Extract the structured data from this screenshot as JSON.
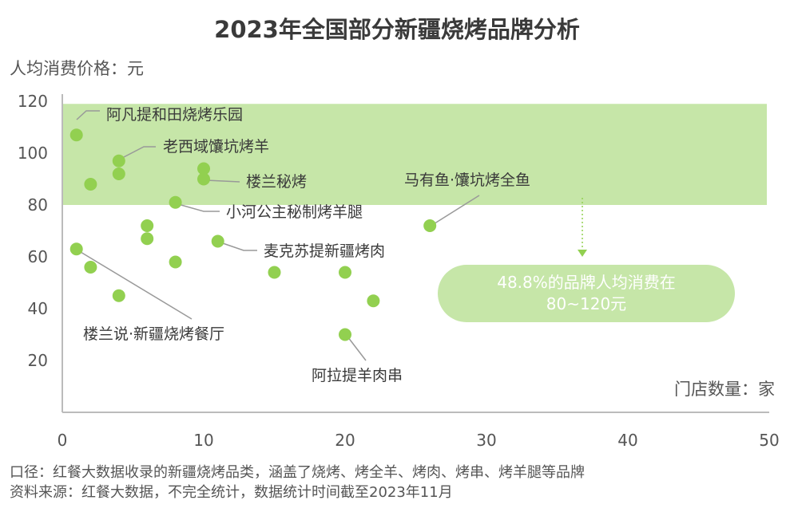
{
  "chart_data": {
    "type": "scatter",
    "title": "2023年全国部分新疆烧烤品牌分析",
    "ylabel": "人均消费价格：元",
    "xlabel": "门店数量：家",
    "xlim": [
      0,
      50
    ],
    "ylim": [
      0,
      120
    ],
    "xticks": [
      0,
      10,
      20,
      30,
      40,
      50
    ],
    "yticks": [
      20,
      40,
      60,
      80,
      100,
      120
    ],
    "grid": false,
    "point_color": "#92d050",
    "band_color": "#c6e6a8",
    "highlight_band": {
      "y_from": 80,
      "y_to": 119
    },
    "points": [
      {
        "x": 1,
        "y": 107,
        "label": "阿凡提和田烧烤乐园"
      },
      {
        "x": 4,
        "y": 97,
        "label": "老西域馕坑烤羊"
      },
      {
        "x": 4,
        "y": 92,
        "label": ""
      },
      {
        "x": 2,
        "y": 88,
        "label": ""
      },
      {
        "x": 10,
        "y": 94,
        "label": ""
      },
      {
        "x": 10,
        "y": 90,
        "label": "楼兰秘烤"
      },
      {
        "x": 8,
        "y": 81,
        "label": "小河公主秘制烤羊腿"
      },
      {
        "x": 6,
        "y": 72,
        "label": ""
      },
      {
        "x": 6,
        "y": 67,
        "label": ""
      },
      {
        "x": 11,
        "y": 66,
        "label": "麦克苏提新疆烤肉"
      },
      {
        "x": 1,
        "y": 63,
        "label": "楼兰说·新疆烧烤餐厅"
      },
      {
        "x": 2,
        "y": 56,
        "label": ""
      },
      {
        "x": 8,
        "y": 58,
        "label": ""
      },
      {
        "x": 4,
        "y": 45,
        "label": ""
      },
      {
        "x": 15,
        "y": 54,
        "label": ""
      },
      {
        "x": 20,
        "y": 54,
        "label": ""
      },
      {
        "x": 22,
        "y": 43,
        "label": ""
      },
      {
        "x": 20,
        "y": 30,
        "label": "阿拉提羊肉串"
      },
      {
        "x": 26,
        "y": 72,
        "label": "马有鱼·馕坑烤全鱼"
      }
    ],
    "callout": {
      "line1": "48.8%的品牌人均消费在",
      "line2": "80~120元"
    }
  },
  "notes": [
    "口径：红餐大数据收录的新疆烧烤品类，涵盖了烧烤、烤全羊、烤肉、烤串、烤羊腿等品牌",
    "资料来源：红餐大数据，不完全统计，数据统计时间截至2023年11月"
  ],
  "watermark": "红餐大数据"
}
